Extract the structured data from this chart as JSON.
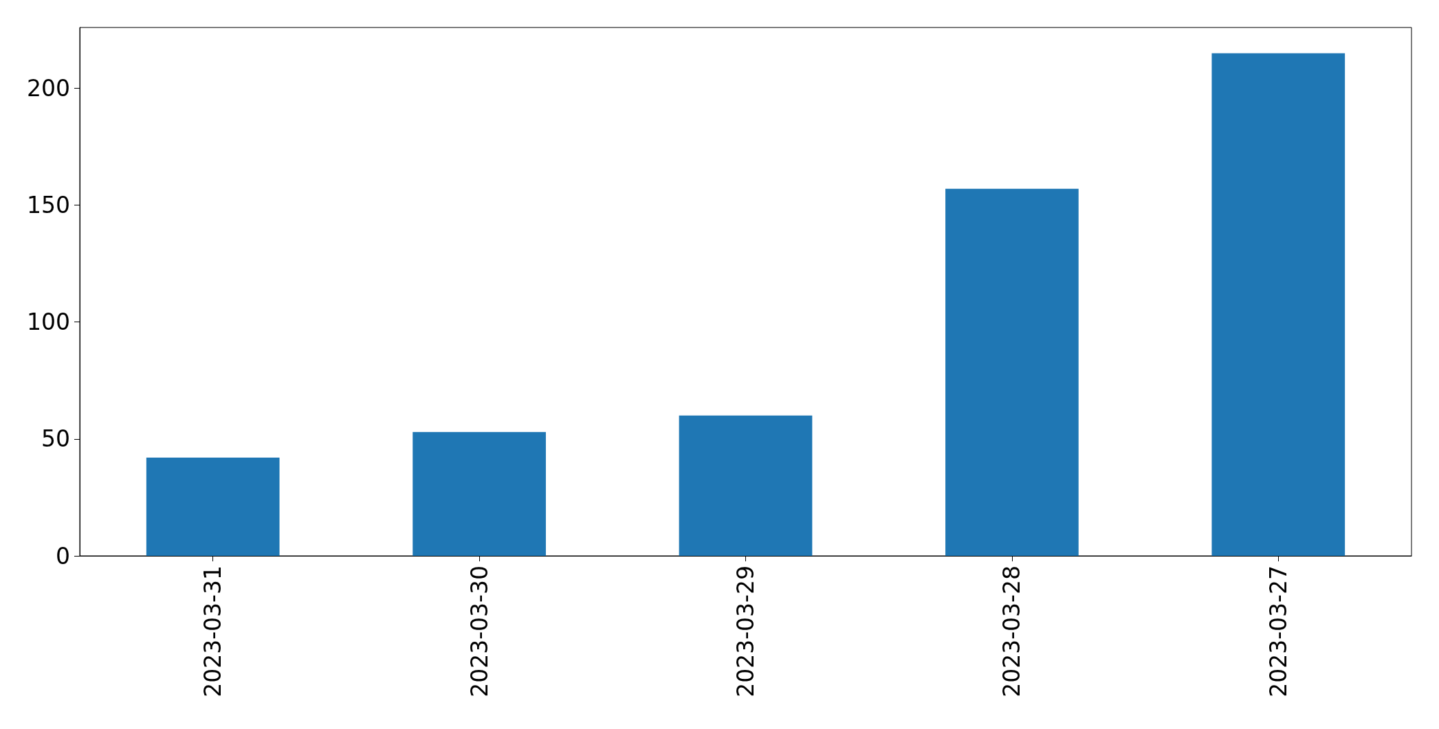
{
  "chart_data": {
    "type": "bar",
    "categories": [
      "2023-03-31",
      "2023-03-30",
      "2023-03-29",
      "2023-03-28",
      "2023-03-27"
    ],
    "values": [
      42,
      53,
      60,
      157,
      215
    ],
    "color": "#1f77b4",
    "ylim": [
      0,
      226
    ],
    "yticks": [
      0,
      50,
      100,
      150,
      200
    ],
    "grid": false
  }
}
